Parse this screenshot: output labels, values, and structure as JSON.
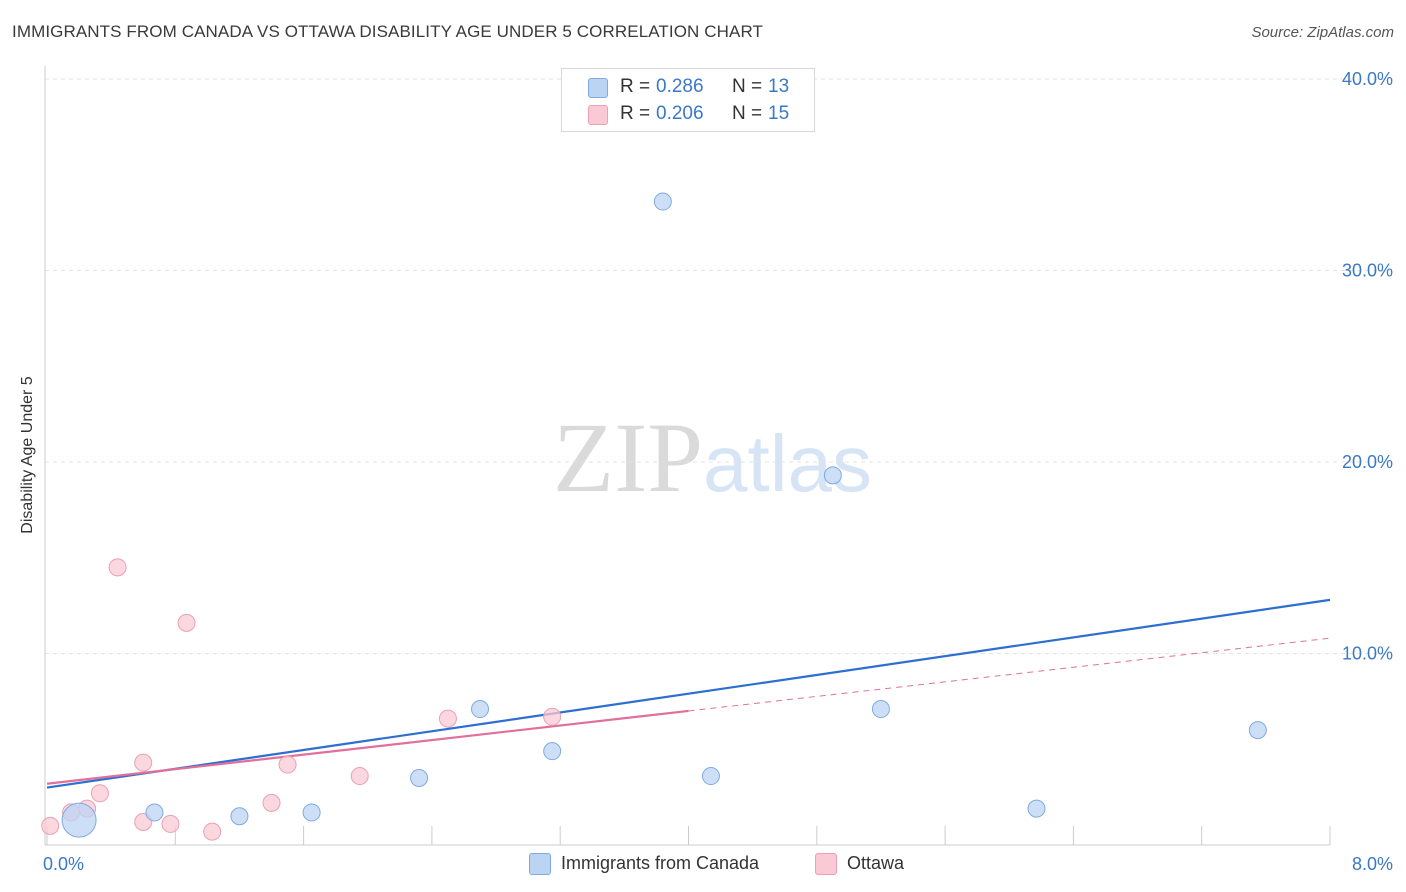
{
  "title": "IMMIGRANTS FROM CANADA VS OTTAWA DISABILITY AGE UNDER 5 CORRELATION CHART",
  "source": "Source: ZipAtlas.com",
  "watermark": {
    "zip": "ZIP",
    "atlas": "atlas"
  },
  "legend": {
    "series": [
      {
        "r_label": "R =",
        "r_value": "0.286",
        "n_label": "N =",
        "n_value": "13"
      },
      {
        "r_label": "R =",
        "r_value": "0.206",
        "n_label": "N =",
        "n_value": "15"
      }
    ]
  },
  "bottom_legend": {
    "series1": "Immigrants from Canada",
    "series2": "Ottawa"
  },
  "colors": {
    "blue_fill": "#bcd4f4",
    "blue_stroke": "#7faae0",
    "blue_line": "#2d6fd0",
    "pink_fill": "#f9c9d6",
    "pink_stroke": "#eba0b5",
    "pink_line": "#e0709a",
    "grid": "#e3e3e3",
    "tick_text": "#3b78c8"
  },
  "chart_data": {
    "type": "scatter",
    "title": "IMMIGRANTS FROM CANADA VS OTTAWA DISABILITY AGE UNDER 5 CORRELATION CHART",
    "xlabel": "",
    "ylabel": "Disability Age Under 5",
    "xlim": [
      0,
      8
    ],
    "ylim": [
      0,
      40
    ],
    "x_tick_labels": [
      {
        "value": 0,
        "label": "0.0%"
      },
      {
        "value": 8,
        "label": "8.0%"
      }
    ],
    "y_tick_labels": [
      {
        "value": 10,
        "label": "10.0%"
      },
      {
        "value": 20,
        "label": "20.0%"
      },
      {
        "value": 30,
        "label": "30.0%"
      },
      {
        "value": 40,
        "label": "40.0%"
      }
    ],
    "series": [
      {
        "name": "Immigrants from Canada",
        "color": "#bcd4f4",
        "points": [
          {
            "x": 0.2,
            "y": 1.3,
            "size": 3
          },
          {
            "x": 0.67,
            "y": 1.7,
            "size": 1
          },
          {
            "x": 1.2,
            "y": 1.5,
            "size": 1
          },
          {
            "x": 1.65,
            "y": 1.7,
            "size": 1
          },
          {
            "x": 2.32,
            "y": 3.5,
            "size": 1
          },
          {
            "x": 2.7,
            "y": 7.1,
            "size": 1
          },
          {
            "x": 3.15,
            "y": 4.9,
            "size": 1
          },
          {
            "x": 3.84,
            "y": 33.6,
            "size": 1
          },
          {
            "x": 4.14,
            "y": 3.6,
            "size": 1
          },
          {
            "x": 4.9,
            "y": 19.3,
            "size": 1
          },
          {
            "x": 5.2,
            "y": 7.1,
            "size": 1
          },
          {
            "x": 6.17,
            "y": 1.9,
            "size": 1
          },
          {
            "x": 7.55,
            "y": 6.0,
            "size": 1
          }
        ],
        "trend": {
          "x1": 0,
          "y1": 3.0,
          "x2": 8,
          "y2": 12.8,
          "dashed_from": null
        }
      },
      {
        "name": "Ottawa",
        "color": "#f9c9d6",
        "points": [
          {
            "x": 0.02,
            "y": 1.0,
            "size": 1
          },
          {
            "x": 0.15,
            "y": 1.7,
            "size": 1
          },
          {
            "x": 0.25,
            "y": 1.9,
            "size": 1
          },
          {
            "x": 0.33,
            "y": 2.7,
            "size": 1
          },
          {
            "x": 0.44,
            "y": 14.5,
            "size": 1
          },
          {
            "x": 0.6,
            "y": 4.3,
            "size": 1
          },
          {
            "x": 0.6,
            "y": 1.2,
            "size": 1
          },
          {
            "x": 0.77,
            "y": 1.1,
            "size": 1
          },
          {
            "x": 0.87,
            "y": 11.6,
            "size": 1
          },
          {
            "x": 1.03,
            "y": 0.7,
            "size": 1
          },
          {
            "x": 1.4,
            "y": 2.2,
            "size": 1
          },
          {
            "x": 1.5,
            "y": 4.2,
            "size": 1
          },
          {
            "x": 1.95,
            "y": 3.6,
            "size": 1
          },
          {
            "x": 2.5,
            "y": 6.6,
            "size": 1
          },
          {
            "x": 3.15,
            "y": 6.7,
            "size": 1
          }
        ],
        "trend": {
          "x1": 0,
          "y1": 3.2,
          "x2": 8,
          "y2": 10.8,
          "dashed_from": 4.0
        }
      }
    ]
  }
}
